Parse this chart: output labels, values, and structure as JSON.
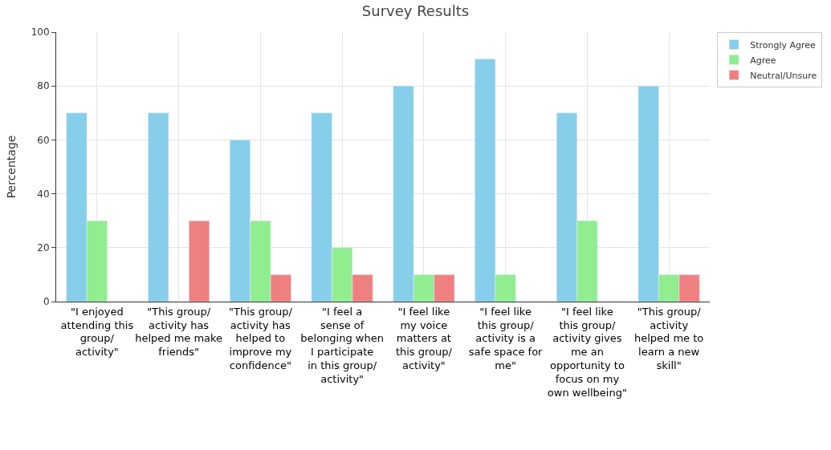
{
  "chart_data": {
    "type": "bar",
    "title": "Survey Results",
    "ylabel": "Percentage",
    "categories": [
      "\"I enjoyed attending this group/ activity\"",
      "\"This group/ activity has helped me make friends\"",
      "\"This group/ activity has helped to improve my confidence\"",
      "\"I feel a sense of belonging when I participate in this group/ activity\"",
      "\"I feel like my voice matters at this group/ activity\"",
      "\"I feel like this group/ activity is a safe space for me\"",
      "\"I feel like this group/ activity gives me an opportunity to focus on my own wellbeing\"",
      "\"This group/ activity helped me to learn a new skill\""
    ],
    "series": [
      {
        "name": "Strongly Agree",
        "color": "#87ceeb",
        "values": [
          70,
          70,
          60,
          70,
          80,
          90,
          70,
          80
        ]
      },
      {
        "name": "Agree",
        "color": "#90ee90",
        "values": [
          30,
          null,
          30,
          20,
          10,
          10,
          30,
          10
        ]
      },
      {
        "name": "Neutral/Unsure",
        "color": "#f08080",
        "values": [
          null,
          30,
          10,
          10,
          10,
          null,
          null,
          10
        ]
      }
    ],
    "ylim": [
      0,
      100
    ],
    "yticks": [
      0,
      20,
      40,
      60,
      80,
      100
    ],
    "grid": true,
    "legend": "top right"
  }
}
